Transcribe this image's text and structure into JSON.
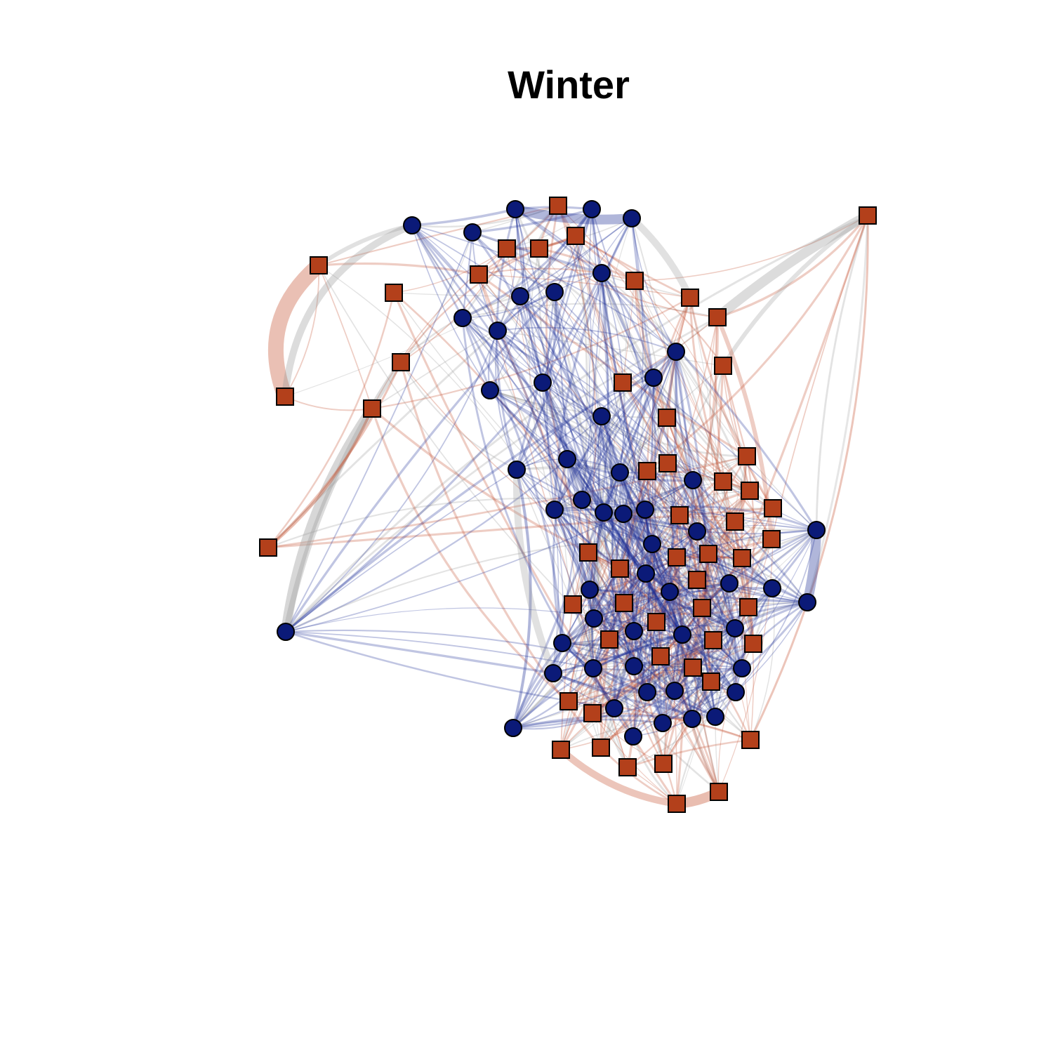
{
  "title": "Winter",
  "colors": {
    "circle_node": "#0b1a78",
    "square_node": "#b3401b",
    "circle_circle_edge": "#1c2f96",
    "square_square_edge": "#c85a3a",
    "mixed_edge": "#9b9b9b",
    "node_outline": "#000000"
  },
  "node_shapes": [
    "circle",
    "square"
  ]
}
